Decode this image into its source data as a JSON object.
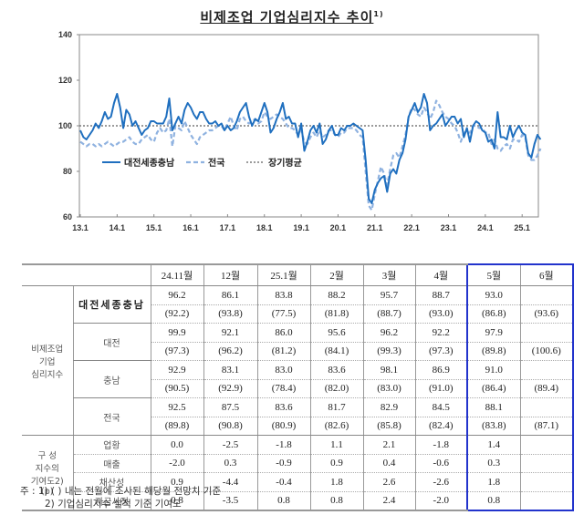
{
  "chart_data": {
    "type": "line",
    "title": "비제조업 기업심리지수 추이",
    "title_footnote": "1)",
    "xlabel": "",
    "ylabel": "",
    "ylim": [
      60,
      140
    ],
    "yticks": [
      60,
      80,
      100,
      120,
      140
    ],
    "xticks": [
      "13.1",
      "14.1",
      "15.1",
      "16.1",
      "17.1",
      "18.1",
      "19.1",
      "20.1",
      "21.1",
      "22.1",
      "23.1",
      "24.1",
      "25.1"
    ],
    "x_start": "13.1",
    "x_end": "25.5",
    "grid": false,
    "legend_position": "lower-left inside",
    "reference_line": {
      "name": "장기평균",
      "value": 100,
      "style": "dotted",
      "color": "#7a7a7a"
    },
    "series": [
      {
        "name": "대전세종충남",
        "style": "solid",
        "color": "#1f6fbf",
        "values": [
          98,
          95,
          94,
          96,
          98,
          101,
          99,
          102,
          106,
          103,
          104,
          110,
          114,
          108,
          99,
          107,
          105,
          100,
          102,
          99,
          96,
          98,
          99,
          102,
          102,
          101,
          101,
          101,
          104,
          112,
          98,
          101,
          104,
          101,
          107,
          110,
          108,
          105,
          103,
          106,
          106,
          103,
          101,
          101,
          102,
          100,
          101,
          98,
          100,
          98,
          99,
          102,
          106,
          108,
          110,
          104,
          100,
          103,
          102,
          106,
          110,
          106,
          97,
          99,
          103,
          106,
          110,
          103,
          104,
          101,
          101,
          95,
          101,
          89,
          93,
          98,
          100,
          97,
          101,
          92,
          94,
          98,
          100,
          96,
          96,
          99,
          98,
          100,
          100,
          101,
          100,
          99,
          98,
          85,
          68,
          66,
          72,
          75,
          77,
          78,
          71,
          79,
          81,
          79,
          85,
          88,
          94,
          104,
          107,
          110,
          106,
          108,
          114,
          110,
          98,
          100,
          101,
          103,
          105,
          100,
          102,
          104,
          104,
          101,
          103,
          95,
          99,
          93,
          100,
          102,
          101,
          98,
          97,
          93,
          94,
          90,
          106,
          95,
          95,
          94,
          100,
          95,
          98,
          100,
          97,
          96,
          88,
          86,
          92,
          96,
          94
        ]
      },
      {
        "name": "전국",
        "style": "dashed",
        "color": "#8fb2e0",
        "values": [
          93,
          92,
          91,
          92,
          92,
          91,
          92,
          91,
          92,
          93,
          92,
          91,
          92,
          93,
          93,
          94,
          95,
          93,
          92,
          92,
          94,
          95,
          96,
          94,
          93,
          97,
          99,
          97,
          98,
          103,
          91,
          100,
          99,
          98,
          102,
          99,
          96,
          94,
          92,
          95,
          96,
          97,
          98,
          98,
          99,
          100,
          100,
          98,
          101,
          104,
          100,
          98,
          103,
          104,
          102,
          101,
          102,
          103,
          101,
          102,
          106,
          104,
          103,
          104,
          105,
          104,
          103,
          101,
          99,
          99,
          98,
          96,
          98,
          93,
          92,
          95,
          97,
          95,
          98,
          95,
          96,
          98,
          98,
          96,
          95,
          97,
          97,
          99,
          99,
          99,
          98,
          96,
          95,
          80,
          65,
          63,
          70,
          76,
          82,
          79,
          74,
          81,
          87,
          88,
          86,
          91,
          96,
          104,
          108,
          107,
          105,
          104,
          108,
          106,
          103,
          106,
          111,
          109,
          106,
          104,
          103,
          101,
          100,
          97,
          93,
          97,
          97,
          97,
          100,
          100,
          99,
          99,
          97,
          97,
          92,
          94,
          90,
          89,
          91,
          92,
          90,
          94,
          94,
          93,
          96,
          95,
          87,
          85,
          85,
          87,
          90
        ]
      }
    ]
  },
  "legend": {
    "items": [
      {
        "label": "대전세종충남"
      },
      {
        "label": "전국"
      },
      {
        "label": "장기평균"
      }
    ]
  },
  "table": {
    "columns": [
      "24.11월",
      "12월",
      "25.1월",
      "2월",
      "3월",
      "4월",
      "5월",
      "6월"
    ],
    "highlighted_columns": [
      "5월",
      "6월"
    ],
    "group1_label": "비제조업\n기업\n심리지수",
    "group1_lines": [
      "비제조업",
      "기업",
      "심리지수"
    ],
    "regions": [
      {
        "name": "대전세종충남",
        "actual": [
          "96.2",
          "86.1",
          "83.8",
          "88.2",
          "95.7",
          "88.7",
          "93.0",
          ""
        ],
        "forecast": [
          "(92.2)",
          "(93.8)",
          "(77.5)",
          "(81.8)",
          "(88.7)",
          "(93.0)",
          "(86.8)",
          "(93.6)"
        ]
      },
      {
        "name": "대전",
        "actual": [
          "99.9",
          "92.1",
          "86.0",
          "95.6",
          "96.2",
          "92.2",
          "97.9",
          ""
        ],
        "forecast": [
          "(97.3)",
          "(96.2)",
          "(81.2)",
          "(84.1)",
          "(99.3)",
          "(97.3)",
          "(89.8)",
          "(100.6)"
        ]
      },
      {
        "name": "충남",
        "actual": [
          "92.9",
          "83.1",
          "83.0",
          "83.6",
          "98.1",
          "86.9",
          "91.0",
          ""
        ],
        "forecast": [
          "(90.5)",
          "(92.9)",
          "(78.4)",
          "(82.0)",
          "(83.0)",
          "(91.0)",
          "(86.4)",
          "(89.4)"
        ]
      },
      {
        "name": "전국",
        "actual": [
          "92.5",
          "87.5",
          "83.6",
          "81.7",
          "82.9",
          "84.5",
          "88.1",
          ""
        ],
        "forecast": [
          "(89.8)",
          "(90.8)",
          "(80.9)",
          "(82.6)",
          "(85.8)",
          "(82.4)",
          "(83.8)",
          "(87.1)"
        ]
      }
    ],
    "group2_lines": [
      "구  성",
      "지수의",
      "기여도2)",
      "(p)"
    ],
    "components": [
      {
        "name": "업황",
        "values": [
          "0.0",
          "-2.5",
          "-1.8",
          "1.1",
          "2.1",
          "-1.8",
          "1.4",
          ""
        ]
      },
      {
        "name": "매출",
        "values": [
          "-2.0",
          "0.3",
          "-0.9",
          "0.9",
          "0.4",
          "-0.6",
          "0.3",
          ""
        ]
      },
      {
        "name": "채산성",
        "values": [
          "0.9",
          "-4.4",
          "-0.4",
          "1.8",
          "2.6",
          "-2.6",
          "1.8",
          ""
        ]
      },
      {
        "name": "자금사정",
        "values": [
          "0.8",
          "-3.5",
          "0.8",
          "0.8",
          "2.4",
          "-2.0",
          "0.8",
          ""
        ]
      }
    ]
  },
  "notes": [
    "주 : 1) (    ) 내는 전월에 조사된 해당월 전망치 기준",
    "2) 기업심리지수 실적 기준 기여도"
  ]
}
